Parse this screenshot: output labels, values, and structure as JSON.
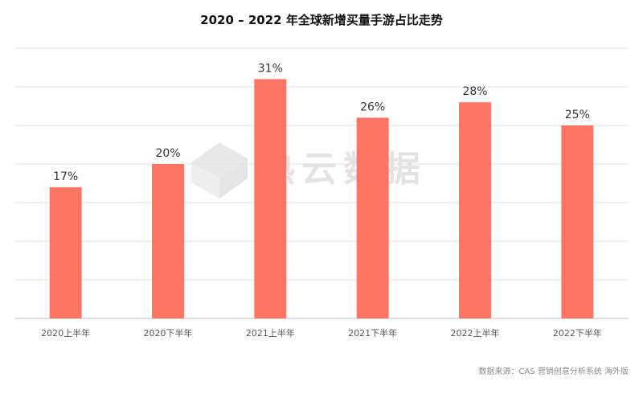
{
  "chart_data": {
    "type": "bar",
    "title": "2020 – 2022 年全球新增买量手游占比走势",
    "categories": [
      "2020上半年",
      "2020下半年",
      "2021上半年",
      "2021下半年",
      "2022上半年",
      "2022下半年"
    ],
    "values": [
      17,
      20,
      31,
      26,
      28,
      25
    ],
    "data_labels": [
      "17%",
      "20%",
      "31%",
      "26%",
      "28%",
      "25%"
    ],
    "ylim": [
      0,
      35
    ],
    "grid": true,
    "bar_color": "#ff7563"
  },
  "source": "数据来源：CAS 营销创意分析系统 海外版",
  "watermark": "热云数据"
}
